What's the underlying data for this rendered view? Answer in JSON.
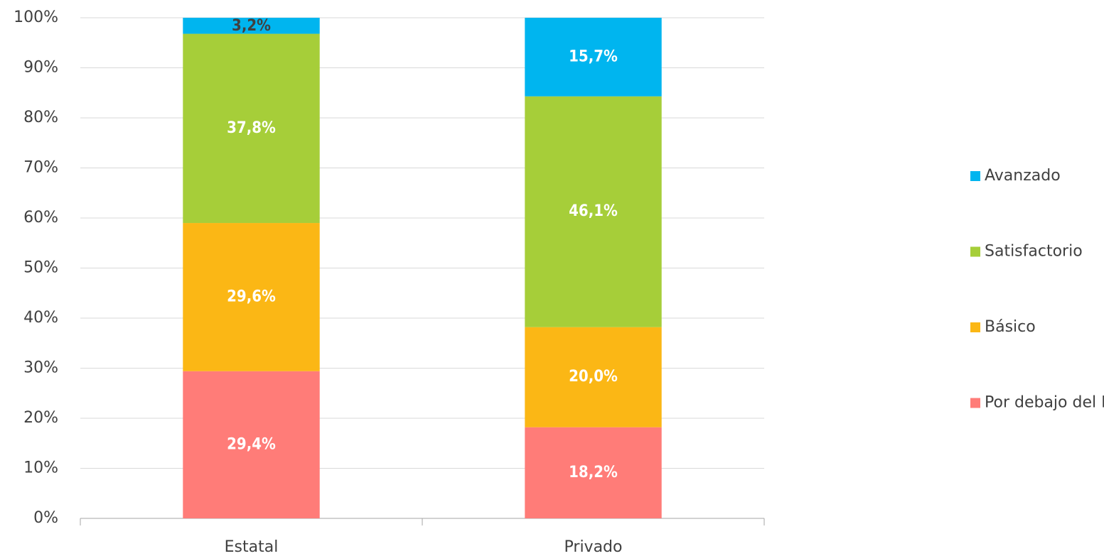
{
  "chart_data": {
    "type": "stacked_bar",
    "categories": [
      "Estatal",
      "Privado"
    ],
    "series": [
      {
        "name": "Por debajo del Nivel Básico",
        "color": "#ff7c78",
        "values": [
          29.4,
          18.2
        ],
        "value_labels": [
          "29,4%",
          "18,2%"
        ]
      },
      {
        "name": "Básico",
        "color": "#fbb715",
        "values": [
          29.6,
          20.0
        ],
        "value_labels": [
          "29,6%",
          "20,0%"
        ]
      },
      {
        "name": "Satisfactorio",
        "color": "#a6ce39",
        "values": [
          37.8,
          46.1
        ],
        "value_labels": [
          "37,8%",
          "46,1%"
        ]
      },
      {
        "name": "Avanzado",
        "color": "#00b5ef",
        "values": [
          3.2,
          15.7
        ],
        "value_labels": [
          "3,2%",
          "15,7%"
        ]
      }
    ],
    "ylim": [
      0,
      100
    ],
    "yticks": [
      {
        "value": 0,
        "label": "0%"
      },
      {
        "value": 10,
        "label": "10%"
      },
      {
        "value": 20,
        "label": "20%"
      },
      {
        "value": 30,
        "label": "30%"
      },
      {
        "value": 40,
        "label": "40%"
      },
      {
        "value": 50,
        "label": "50%"
      },
      {
        "value": 60,
        "label": "60%"
      },
      {
        "value": 70,
        "label": "70%"
      },
      {
        "value": 80,
        "label": "80%"
      },
      {
        "value": 90,
        "label": "90%"
      },
      {
        "value": 100,
        "label": "100%"
      }
    ],
    "grid": true,
    "legend": "right"
  }
}
